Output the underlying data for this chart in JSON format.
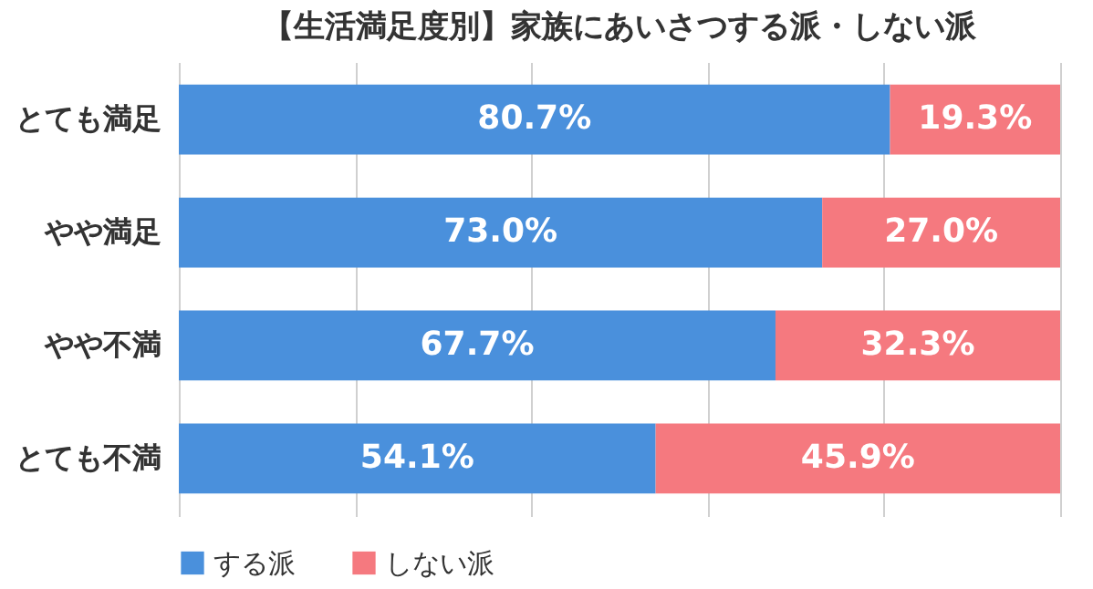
{
  "chart_data": {
    "type": "bar",
    "orientation": "horizontal",
    "stacked": true,
    "title": "【生活満足度別】家族にあいさつする派・しない派",
    "categories": [
      "とても満足",
      "やや満足",
      "やや不満",
      "とても不満"
    ],
    "series": [
      {
        "name": "する派",
        "color": "#4a90dc",
        "values": [
          80.7,
          73.0,
          67.7,
          54.1
        ],
        "value_labels": [
          "80.7%",
          "73.0%",
          "67.7%",
          "54.1%"
        ]
      },
      {
        "name": "しない派",
        "color": "#f5797f",
        "values": [
          19.3,
          27.0,
          32.3,
          45.9
        ],
        "value_labels": [
          "19.3%",
          "27.0%",
          "32.3%",
          "45.9%"
        ]
      }
    ],
    "xlim": [
      0,
      100
    ],
    "xticks": [
      {
        "value": 0,
        "label": null
      },
      {
        "value": 20,
        "label": null
      },
      {
        "value": 40,
        "label": null
      },
      {
        "value": 60,
        "label": null
      },
      {
        "value": 80,
        "label": null
      },
      {
        "value": 100,
        "label": null
      }
    ],
    "grid": "x",
    "tick_labels": "y",
    "legend": "bottom"
  }
}
